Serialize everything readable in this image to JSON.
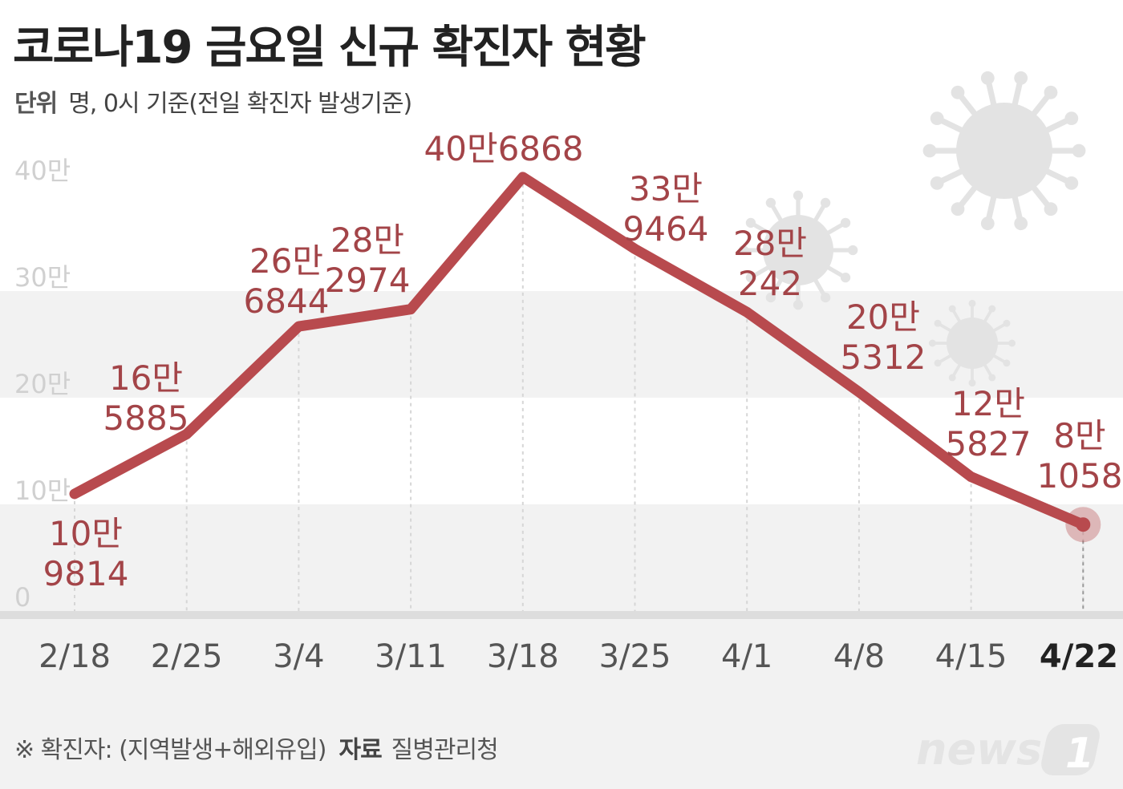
{
  "header": {
    "title": "코로나19 금요일 신규 확진자 현황",
    "unit_label": "단위",
    "unit_text": "명, 0시 기준(전일 확진자 발생기준)"
  },
  "footer": {
    "note": "※ 확진자: (지역발생+해외유입)",
    "source_label": "자료",
    "source": "질병관리청"
  },
  "logo": {
    "text": "news",
    "mark": "1"
  },
  "colors": {
    "line": "#b84a4e",
    "label": "#a34448",
    "band": "#f2f2f2",
    "axis_text": "#555555",
    "gridline_text": "#d0d0d0",
    "virus": "#e3e3e3"
  },
  "chart_data": {
    "type": "line",
    "title": "코로나19 금요일 신규 확진자 현황",
    "xlabel": "",
    "ylabel": "",
    "x": [
      "2/18",
      "2/25",
      "3/4",
      "3/11",
      "3/18",
      "3/25",
      "4/1",
      "4/8",
      "4/15",
      "4/22"
    ],
    "series": [
      {
        "values": [
          109814,
          165885,
          266844,
          282974,
          406868,
          339464,
          280242,
          205312,
          125827,
          81058
        ],
        "labels": [
          [
            "10만",
            "9814"
          ],
          [
            "16만",
            "5885"
          ],
          [
            "26만",
            "6844"
          ],
          [
            "28만",
            "2974"
          ],
          [
            "40만6868"
          ],
          [
            "33만",
            "9464"
          ],
          [
            "28만",
            "242"
          ],
          [
            "20만",
            "5312"
          ],
          [
            "12만",
            "5827"
          ],
          [
            "8만",
            "1058"
          ]
        ]
      }
    ],
    "ylim": [
      0,
      400000
    ],
    "yticks": [
      {
        "value": 0,
        "label": "0"
      },
      {
        "value": 100000,
        "label": "10만"
      },
      {
        "value": 200000,
        "label": "20만"
      },
      {
        "value": 300000,
        "label": "30만"
      },
      {
        "value": 400000,
        "label": "40만"
      }
    ],
    "grid": "alternating bands",
    "highlight": "4/22"
  }
}
